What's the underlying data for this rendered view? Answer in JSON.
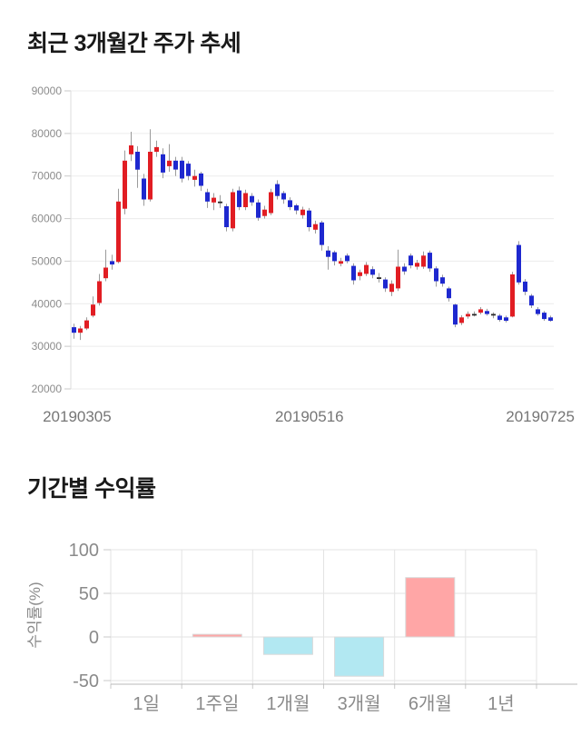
{
  "page": {
    "background": "#ffffff"
  },
  "chart_data": [
    {
      "type": "candlestick",
      "title": "최근 3개월간 주가 추세",
      "ylim": [
        20000,
        90000
      ],
      "y_ticks": [
        90000,
        80000,
        70000,
        60000,
        50000,
        40000,
        30000,
        20000
      ],
      "x_tick_labels": [
        "20190305",
        "20190516",
        "20190725"
      ],
      "x_tick_positions": [
        0.013,
        0.494,
        0.972
      ],
      "grid": true,
      "candle_columns": [
        "open",
        "high",
        "low",
        "close"
      ],
      "candles": [
        [
          34500,
          35300,
          31800,
          33200
        ],
        [
          33200,
          34800,
          31500,
          34200
        ],
        [
          34200,
          36800,
          33800,
          36100
        ],
        [
          37200,
          41700,
          36800,
          39800
        ],
        [
          40200,
          47000,
          39600,
          45300
        ],
        [
          46000,
          52700,
          45300,
          48500
        ],
        [
          50000,
          51500,
          48000,
          49200
        ],
        [
          49800,
          67000,
          49500,
          64000
        ],
        [
          62300,
          76000,
          61000,
          73600
        ],
        [
          75100,
          80400,
          73500,
          77200
        ],
        [
          75700,
          77000,
          67200,
          71500
        ],
        [
          69400,
          70500,
          63000,
          64500
        ],
        [
          64500,
          81000,
          64000,
          75700
        ],
        [
          75700,
          78300,
          74500,
          76800
        ],
        [
          75100,
          76500,
          69500,
          70800
        ],
        [
          72300,
          77500,
          71000,
          73600
        ],
        [
          73600,
          74500,
          70000,
          71500
        ],
        [
          73600,
          74500,
          68500,
          69400
        ],
        [
          72900,
          73500,
          69000,
          70000
        ],
        [
          69100,
          71500,
          67500,
          70000
        ],
        [
          70600,
          71000,
          66500,
          67700
        ],
        [
          66200,
          67000,
          62500,
          64000
        ],
        [
          63800,
          66000,
          62000,
          64900
        ],
        [
          64000,
          65500,
          62500,
          64000
        ],
        [
          62900,
          63500,
          57000,
          58000
        ],
        [
          57700,
          67000,
          57000,
          66200
        ],
        [
          66600,
          67500,
          62000,
          62700
        ],
        [
          62700,
          66800,
          62000,
          66000
        ],
        [
          65300,
          66000,
          63000,
          63800
        ],
        [
          63800,
          64500,
          59500,
          60200
        ],
        [
          60600,
          63000,
          60000,
          62100
        ],
        [
          61300,
          67000,
          60800,
          66200
        ],
        [
          68100,
          69000,
          64500,
          65300
        ],
        [
          66000,
          66500,
          63500,
          64500
        ],
        [
          64300,
          65000,
          62000,
          62700
        ],
        [
          63100,
          63500,
          61000,
          61900
        ],
        [
          60800,
          62800,
          60000,
          62100
        ],
        [
          61900,
          62500,
          57000,
          58000
        ],
        [
          57400,
          59500,
          56500,
          58700
        ],
        [
          59100,
          59500,
          52500,
          53800
        ],
        [
          52500,
          53500,
          48000,
          51000
        ],
        [
          52100,
          52500,
          49000,
          50000
        ],
        [
          49400,
          50800,
          48800,
          50000
        ],
        [
          51300,
          51800,
          49500,
          50000
        ],
        [
          48900,
          49500,
          44500,
          45500
        ],
        [
          46500,
          48000,
          45500,
          47400
        ],
        [
          47000,
          49800,
          46500,
          49100
        ],
        [
          48100,
          48800,
          46000,
          46800
        ],
        [
          46200,
          47200,
          45000,
          46200
        ],
        [
          45700,
          46200,
          42800,
          43600
        ],
        [
          42800,
          45500,
          41800,
          44700
        ],
        [
          43600,
          52700,
          43000,
          48700
        ],
        [
          48700,
          49500,
          46800,
          47600
        ],
        [
          51300,
          51800,
          48300,
          49000
        ],
        [
          48700,
          50300,
          48000,
          49600
        ],
        [
          48700,
          52300,
          48200,
          51300
        ],
        [
          52000,
          52500,
          47500,
          48300
        ],
        [
          48300,
          48800,
          44000,
          45300
        ],
        [
          46200,
          46800,
          44000,
          44700
        ],
        [
          43600,
          44000,
          40500,
          41300
        ],
        [
          39800,
          40000,
          34500,
          35100
        ],
        [
          35500,
          37300,
          35000,
          36800
        ],
        [
          37000,
          38200,
          36500,
          37600
        ],
        [
          37600,
          38200,
          37000,
          37600
        ],
        [
          37900,
          39200,
          37500,
          38700
        ],
        [
          38300,
          38800,
          37200,
          37600
        ],
        [
          37600,
          38000,
          36600,
          37300
        ],
        [
          37200,
          37600,
          35800,
          36200
        ],
        [
          36800,
          37200,
          35600,
          36000
        ],
        [
          37000,
          47500,
          36800,
          46900
        ],
        [
          53800,
          54700,
          44500,
          45000
        ],
        [
          45200,
          45800,
          42000,
          42800
        ],
        [
          41900,
          42300,
          39000,
          39600
        ],
        [
          38700,
          39200,
          37200,
          37600
        ],
        [
          37900,
          38300,
          36000,
          36400
        ],
        [
          36800,
          37200,
          35800,
          36000
        ]
      ],
      "colors": {
        "up": "#e11d23",
        "down": "#1e28cf",
        "doji": "#2b2b2b",
        "wick": "#9b9b9b",
        "grid": "#ececec",
        "spine": "#dcdcdc",
        "tick": "#c9c9c9",
        "y_text": "#8c8c8c",
        "x_text": "#767676"
      }
    },
    {
      "type": "bar",
      "title": "기간별 수익률",
      "ylabel": "수익률(%)",
      "categories": [
        "1일",
        "1주일",
        "1개월",
        "3개월",
        "6개월",
        "1년"
      ],
      "values": [
        0,
        3,
        -20,
        -45,
        68,
        0
      ],
      "ylim": [
        -50,
        100
      ],
      "y_ticks": [
        100,
        50,
        0,
        -50
      ],
      "grid": true,
      "legend": "none",
      "colors": {
        "positive": "#ffa6a6",
        "negative": "#b2e8f2",
        "bar_stroke": "#d9d9d9",
        "grid": "#e3e3e3",
        "axis": "#b9b9b9",
        "tick": "#c9c9c9",
        "text": "#8a8a8a"
      }
    }
  ]
}
